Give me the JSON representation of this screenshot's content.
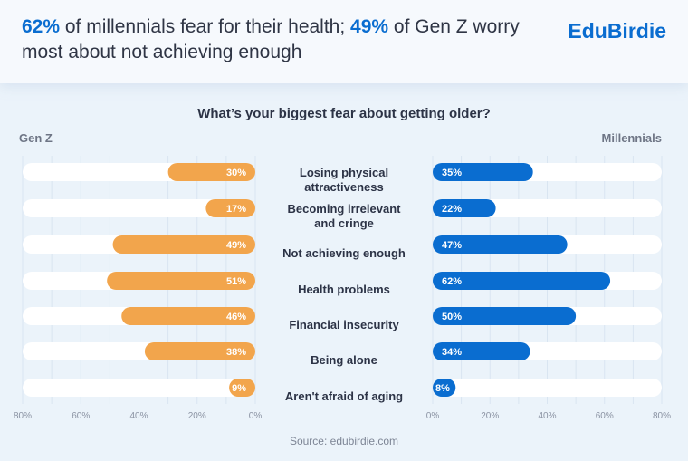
{
  "header": {
    "headline_pct1": "62%",
    "headline_text1": " of millennials fear for their health; ",
    "headline_pct2": "49%",
    "headline_text2": " of Gen Z worry most about not achieving enough",
    "logo": "EduBirdie"
  },
  "chart_data": {
    "type": "bar",
    "title": "What’s your biggest fear about getting older?",
    "left_label": "Gen Z",
    "right_label": "Millennials",
    "categories": [
      [
        "Losing physical",
        "attractiveness"
      ],
      [
        "Becoming irrelevant",
        "and cringe"
      ],
      [
        "Not achieving enough"
      ],
      [
        "Health problems"
      ],
      [
        "Financial insecurity"
      ],
      [
        "Being alone"
      ],
      [
        "Aren't afraid of aging"
      ]
    ],
    "series": [
      {
        "name": "Gen Z",
        "color": "#f2a54c",
        "values": [
          30,
          17,
          49,
          51,
          46,
          38,
          9
        ]
      },
      {
        "name": "Millennials",
        "color": "#0a6dd0",
        "values": [
          35,
          22,
          47,
          62,
          50,
          34,
          8
        ]
      }
    ],
    "xlim": [
      0,
      80
    ],
    "ticks": [
      "0%",
      "20%",
      "40%",
      "60%",
      "80%"
    ],
    "tick_values": [
      0,
      20,
      40,
      60,
      80
    ]
  },
  "source": "Source: edubirdie.com"
}
